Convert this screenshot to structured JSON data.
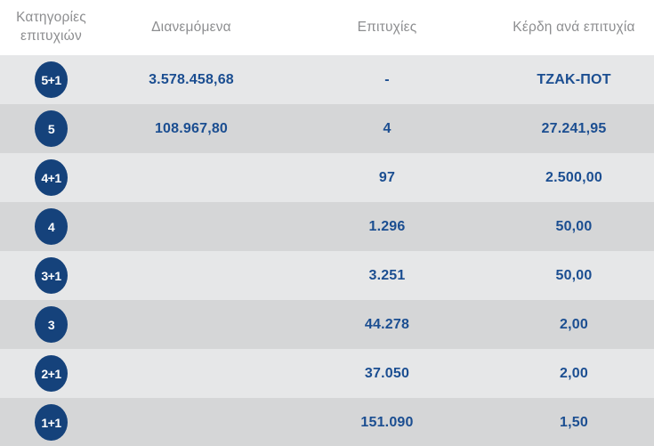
{
  "colors": {
    "badge_navy": "#15427b",
    "value_blue": "#1b4e91",
    "header_gray": "#8d8e90",
    "row_light": "#e6e7e8",
    "row_dark": "#d5d6d7",
    "header_bg": "#ffffff"
  },
  "table": {
    "headers": {
      "category_line1": "Κατηγορίες",
      "category_line2": "επιτυχιών",
      "distributed": "Διανεμόμενα",
      "winners": "Επιτυχίες",
      "prize_per_win": "Κέρδη ανά επιτυχία"
    },
    "rows": [
      {
        "tier": "5+1",
        "distributed": "3.578.458,68",
        "winners": "-",
        "prize": "ΤΖΑΚ-ΠΟΤ"
      },
      {
        "tier": "5",
        "distributed": "108.967,80",
        "winners": "4",
        "prize": "27.241,95"
      },
      {
        "tier": "4+1",
        "distributed": "",
        "winners": "97",
        "prize": "2.500,00"
      },
      {
        "tier": "4",
        "distributed": "",
        "winners": "1.296",
        "prize": "50,00"
      },
      {
        "tier": "3+1",
        "distributed": "",
        "winners": "3.251",
        "prize": "50,00"
      },
      {
        "tier": "3",
        "distributed": "",
        "winners": "44.278",
        "prize": "2,00"
      },
      {
        "tier": "2+1",
        "distributed": "",
        "winners": "37.050",
        "prize": "2,00"
      },
      {
        "tier": "1+1",
        "distributed": "",
        "winners": "151.090",
        "prize": "1,50"
      }
    ]
  }
}
